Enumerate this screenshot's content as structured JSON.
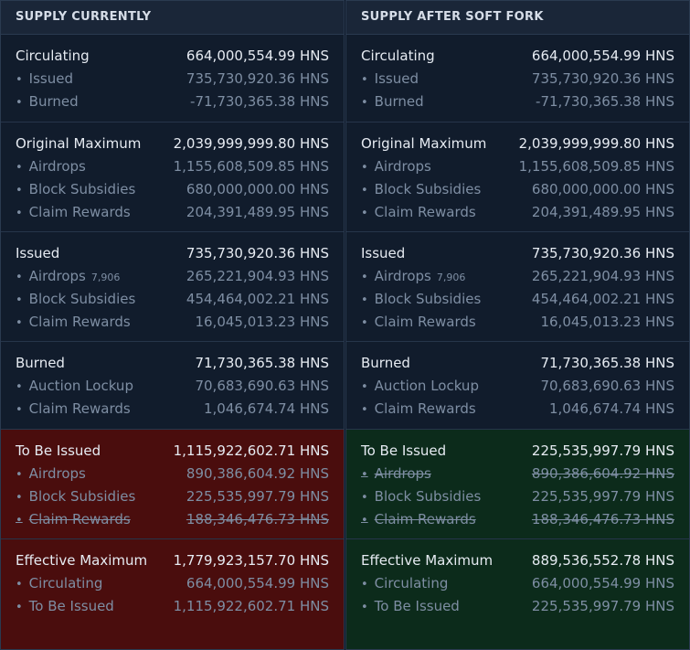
{
  "unit": "HNS",
  "panels": [
    {
      "title": "SUPPLY CURRENTLY",
      "sections": [
        {
          "label": "Circulating",
          "value": "664,000,554.99 HNS",
          "items": [
            {
              "label": "Issued",
              "value": "735,730,920.36 HNS"
            },
            {
              "label": "Burned",
              "value": "-71,730,365.38 HNS"
            }
          ]
        },
        {
          "label": "Original Maximum",
          "value": "2,039,999,999.80 HNS",
          "items": [
            {
              "label": "Airdrops",
              "value": "1,155,608,509.85 HNS"
            },
            {
              "label": "Block Subsidies",
              "value": "680,000,000.00 HNS"
            },
            {
              "label": "Claim Rewards",
              "value": "204,391,489.95 HNS"
            }
          ]
        },
        {
          "label": "Issued",
          "value": "735,730,920.36 HNS",
          "items": [
            {
              "label": "Airdrops",
              "count": "7,906",
              "value": "265,221,904.93 HNS"
            },
            {
              "label": "Block Subsidies",
              "value": "454,464,002.21 HNS"
            },
            {
              "label": "Claim Rewards",
              "value": "16,045,013.23 HNS"
            }
          ]
        },
        {
          "label": "Burned",
          "value": "71,730,365.38 HNS",
          "items": [
            {
              "label": "Auction Lockup",
              "value": "70,683,690.63 HNS"
            },
            {
              "label": "Claim Rewards",
              "value": "1,046,674.74 HNS"
            }
          ]
        },
        {
          "label": "To Be Issued",
          "value": "1,115,922,602.71 HNS",
          "items": [
            {
              "label": "Airdrops",
              "value": "890,386,604.92 HNS"
            },
            {
              "label": "Block Subsidies",
              "value": "225,535,997.79 HNS"
            },
            {
              "label": "Claim Rewards",
              "value": "188,346,476.73 HNS"
            }
          ]
        },
        {
          "label": "Effective Maximum",
          "value": "1,779,923,157.70 HNS",
          "items": [
            {
              "label": "Circulating",
              "value": "664,000,554.99 HNS"
            },
            {
              "label": "To Be Issued",
              "value": "1,115,922,602.71 HNS"
            }
          ]
        }
      ]
    },
    {
      "title": "SUPPLY AFTER SOFT FORK",
      "sections": [
        {
          "label": "Circulating",
          "value": "664,000,554.99 HNS",
          "items": [
            {
              "label": "Issued",
              "value": "735,730,920.36 HNS"
            },
            {
              "label": "Burned",
              "value": "-71,730,365.38 HNS"
            }
          ]
        },
        {
          "label": "Original Maximum",
          "value": "2,039,999,999.80 HNS",
          "items": [
            {
              "label": "Airdrops",
              "value": "1,155,608,509.85 HNS"
            },
            {
              "label": "Block Subsidies",
              "value": "680,000,000.00 HNS"
            },
            {
              "label": "Claim Rewards",
              "value": "204,391,489.95 HNS"
            }
          ]
        },
        {
          "label": "Issued",
          "value": "735,730,920.36 HNS",
          "items": [
            {
              "label": "Airdrops",
              "count": "7,906",
              "value": "265,221,904.93 HNS"
            },
            {
              "label": "Block Subsidies",
              "value": "454,464,002.21 HNS"
            },
            {
              "label": "Claim Rewards",
              "value": "16,045,013.23 HNS"
            }
          ]
        },
        {
          "label": "Burned",
          "value": "71,730,365.38 HNS",
          "items": [
            {
              "label": "Auction Lockup",
              "value": "70,683,690.63 HNS"
            },
            {
              "label": "Claim Rewards",
              "value": "1,046,674.74 HNS"
            }
          ]
        },
        {
          "label": "To Be Issued",
          "value": "225,535,997.79 HNS",
          "items": [
            {
              "label": "Airdrops",
              "value": "890,386,604.92 HNS"
            },
            {
              "label": "Block Subsidies",
              "value": "225,535,997.79 HNS"
            },
            {
              "label": "Claim Rewards",
              "value": "188,346,476.73 HNS"
            }
          ]
        },
        {
          "label": "Effective Maximum",
          "value": "889,536,552.78 HNS",
          "items": [
            {
              "label": "Circulating",
              "value": "664,000,554.99 HNS"
            },
            {
              "label": "To Be Issued",
              "value": "225,535,997.79 HNS"
            }
          ]
        }
      ]
    }
  ]
}
